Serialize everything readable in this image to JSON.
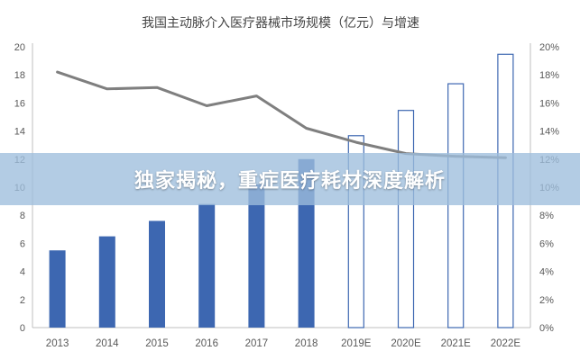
{
  "chart_data": {
    "type": "bar",
    "title": "我国主动脉介入医疗器械市场规模（亿元）与增速",
    "categories": [
      "2013",
      "2014",
      "2015",
      "2016",
      "2017",
      "2018",
      "2019E",
      "2020E",
      "2021E",
      "2022E"
    ],
    "series": [
      {
        "kind": "bar",
        "axis": "left",
        "values": [
          5.5,
          6.5,
          7.6,
          8.8,
          10.2,
          12.0,
          13.7,
          15.5,
          17.4,
          19.5
        ],
        "styles": [
          "solid",
          "solid",
          "solid",
          "solid",
          "solid",
          "solid",
          "outline",
          "outline",
          "outline",
          "outline"
        ]
      },
      {
        "kind": "line",
        "axis": "right",
        "values": [
          18.2,
          17.0,
          17.1,
          15.8,
          16.5,
          14.2,
          13.2,
          12.4,
          12.2,
          12.1
        ]
      }
    ],
    "ylim_left": [
      0,
      20
    ],
    "ylim_right": [
      0,
      20
    ],
    "yticks_left": [
      "0",
      "2",
      "4",
      "6",
      "8",
      "10",
      "12",
      "14",
      "16",
      "18",
      "20"
    ],
    "yticks_right": [
      "0%",
      "2%",
      "4%",
      "6%",
      "8%",
      "10%",
      "12%",
      "14%",
      "16%",
      "18%",
      "20%"
    ],
    "grid": false,
    "colors": {
      "bar_fill": "#3d67b1",
      "bar_outline": "#3d67b1",
      "line": "#7f7f7f",
      "axis": "#bfbfbf",
      "tick_text": "#595959",
      "title_text": "#444444"
    }
  },
  "overlay": {
    "banner_text": "独家揭秘，重症医疗耗材深度解析",
    "banner_color": "#9ebedc"
  }
}
